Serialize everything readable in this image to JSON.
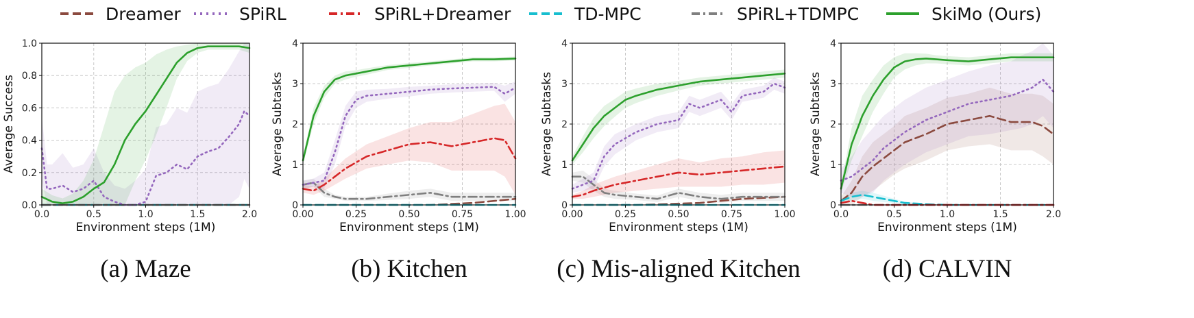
{
  "legend": [
    {
      "name": "Dreamer",
      "color": "#8B4A3F",
      "dash": "dash"
    },
    {
      "name": "SPiRL",
      "color": "#9467BD",
      "dash": "dot"
    },
    {
      "name": "SPiRL+Dreamer",
      "color": "#D62728",
      "dash": "dashdot"
    },
    {
      "name": "TD-MPC",
      "color": "#17BECF",
      "dash": "dash"
    },
    {
      "name": "SPiRL+TDMPC",
      "color": "#7F7F7F",
      "dash": "dashdot"
    },
    {
      "name": "SkiMo (Ours)",
      "color": "#2CA02C",
      "dash": "solid"
    }
  ],
  "chart_data": [
    {
      "type": "line",
      "caption": "(a) Maze",
      "xlabel": "Environment steps (1M)",
      "ylabel": "Average Success",
      "xlim": [
        0,
        2.0
      ],
      "ylim": [
        0,
        1.0
      ],
      "xticks": [
        0.0,
        0.5,
        1.0,
        1.5,
        2.0
      ],
      "yticks": [
        0.0,
        0.2,
        0.4,
        0.6,
        0.8,
        1.0
      ],
      "xtick_labels": [
        "0.0",
        "0.5",
        "1.0",
        "1.5",
        "2.0"
      ],
      "ytick_labels": [
        "0.0",
        "0.2",
        "0.4",
        "0.6",
        "0.8",
        "1.0"
      ],
      "grid": true,
      "series": [
        {
          "name": "SkiMo (Ours)",
          "x": [
            0.0,
            0.1,
            0.2,
            0.3,
            0.4,
            0.5,
            0.6,
            0.7,
            0.8,
            0.9,
            1.0,
            1.1,
            1.2,
            1.3,
            1.4,
            1.5,
            1.6,
            1.7,
            1.8,
            1.9,
            2.0
          ],
          "y": [
            0.05,
            0.02,
            0.01,
            0.02,
            0.05,
            0.1,
            0.14,
            0.25,
            0.4,
            0.5,
            0.58,
            0.68,
            0.78,
            0.88,
            0.94,
            0.97,
            0.98,
            0.98,
            0.98,
            0.98,
            0.97
          ],
          "band": [
            0.05,
            0.04,
            0.03,
            0.05,
            0.1,
            0.18,
            0.35,
            0.45,
            0.4,
            0.35,
            0.3,
            0.25,
            0.18,
            0.1,
            0.05,
            0.03,
            0.02,
            0.02,
            0.02,
            0.02,
            0.03
          ]
        },
        {
          "name": "SPiRL",
          "x": [
            0.0,
            0.05,
            0.1,
            0.2,
            0.3,
            0.4,
            0.5,
            0.6,
            0.7,
            0.8,
            0.9,
            1.0,
            1.1,
            1.2,
            1.3,
            1.4,
            1.5,
            1.6,
            1.7,
            1.8,
            1.9,
            1.95,
            2.0
          ],
          "y": [
            0.35,
            0.1,
            0.1,
            0.12,
            0.08,
            0.1,
            0.15,
            0.05,
            0.02,
            0.0,
            0.0,
            0.02,
            0.18,
            0.2,
            0.25,
            0.22,
            0.3,
            0.33,
            0.35,
            0.42,
            0.5,
            0.58,
            0.55
          ],
          "band": [
            0.2,
            0.15,
            0.15,
            0.2,
            0.15,
            0.15,
            0.2,
            0.15,
            0.1,
            0.1,
            0.15,
            0.2,
            0.3,
            0.3,
            0.35,
            0.35,
            0.4,
            0.4,
            0.4,
            0.42,
            0.45,
            0.42,
            0.45
          ]
        },
        {
          "name": "Dreamer",
          "x": [
            0.0,
            2.0
          ],
          "y": [
            0.0,
            0.0
          ]
        },
        {
          "name": "TD-MPC",
          "x": [
            0.0,
            2.0
          ],
          "y": [
            0.0,
            0.0
          ]
        },
        {
          "name": "SPiRL+TDMPC",
          "x": [
            0.0,
            2.0
          ],
          "y": [
            0.0,
            0.0
          ]
        }
      ]
    },
    {
      "type": "line",
      "caption": "(b) Kitchen",
      "xlabel": "Environment steps (1M)",
      "ylabel": "Average Subtasks",
      "xlim": [
        0,
        1.0
      ],
      "ylim": [
        0,
        4
      ],
      "xticks": [
        0.0,
        0.25,
        0.5,
        0.75,
        1.0
      ],
      "yticks": [
        0,
        1,
        2,
        3,
        4
      ],
      "xtick_labels": [
        "0.00",
        "0.25",
        "0.50",
        "0.75",
        "1.00"
      ],
      "ytick_labels": [
        "0",
        "1",
        "2",
        "3",
        "4"
      ],
      "grid": true,
      "series": [
        {
          "name": "SkiMo (Ours)",
          "x": [
            0.0,
            0.05,
            0.1,
            0.15,
            0.2,
            0.25,
            0.3,
            0.4,
            0.5,
            0.6,
            0.7,
            0.8,
            0.9,
            1.0
          ],
          "y": [
            1.1,
            2.2,
            2.8,
            3.1,
            3.2,
            3.25,
            3.3,
            3.4,
            3.45,
            3.5,
            3.55,
            3.6,
            3.6,
            3.62
          ],
          "band": [
            0.1,
            0.2,
            0.15,
            0.1,
            0.1,
            0.08,
            0.08,
            0.06,
            0.06,
            0.05,
            0.05,
            0.05,
            0.05,
            0.05
          ]
        },
        {
          "name": "SPiRL",
          "x": [
            0.0,
            0.05,
            0.1,
            0.15,
            0.2,
            0.25,
            0.3,
            0.4,
            0.5,
            0.6,
            0.7,
            0.8,
            0.9,
            0.95,
            1.0
          ],
          "y": [
            0.5,
            0.55,
            0.6,
            1.3,
            2.2,
            2.6,
            2.7,
            2.75,
            2.8,
            2.85,
            2.88,
            2.9,
            2.92,
            2.75,
            2.9
          ],
          "band": [
            0.1,
            0.1,
            0.2,
            0.3,
            0.25,
            0.2,
            0.15,
            0.12,
            0.12,
            0.1,
            0.1,
            0.1,
            0.1,
            0.2,
            0.15
          ]
        },
        {
          "name": "SPiRL+Dreamer",
          "x": [
            0.0,
            0.05,
            0.1,
            0.15,
            0.2,
            0.3,
            0.4,
            0.5,
            0.6,
            0.7,
            0.8,
            0.9,
            0.95,
            1.0
          ],
          "y": [
            0.4,
            0.35,
            0.5,
            0.7,
            0.9,
            1.2,
            1.35,
            1.5,
            1.55,
            1.45,
            1.55,
            1.65,
            1.6,
            1.15
          ],
          "band": [
            0.1,
            0.1,
            0.15,
            0.2,
            0.25,
            0.3,
            0.35,
            0.4,
            0.5,
            0.6,
            0.7,
            0.8,
            0.9,
            0.9
          ]
        },
        {
          "name": "SPiRL+TDMPC",
          "x": [
            0.0,
            0.05,
            0.1,
            0.15,
            0.2,
            0.3,
            0.4,
            0.5,
            0.6,
            0.7,
            0.8,
            0.9,
            1.0
          ],
          "y": [
            0.5,
            0.55,
            0.3,
            0.2,
            0.15,
            0.15,
            0.2,
            0.25,
            0.3,
            0.2,
            0.2,
            0.2,
            0.2
          ],
          "band": [
            0.1,
            0.1,
            0.1,
            0.05,
            0.05,
            0.05,
            0.08,
            0.1,
            0.1,
            0.1,
            0.1,
            0.1,
            0.1
          ]
        },
        {
          "name": "Dreamer",
          "x": [
            0.0,
            0.6,
            0.8,
            1.0
          ],
          "y": [
            0.0,
            0.0,
            0.05,
            0.15
          ]
        },
        {
          "name": "TD-MPC",
          "x": [
            0.0,
            1.0
          ],
          "y": [
            0.0,
            0.0
          ]
        }
      ]
    },
    {
      "type": "line",
      "caption": "(c) Mis-aligned Kitchen",
      "xlabel": "Environment steps (1M)",
      "ylabel": "Average Subtasks",
      "xlim": [
        0,
        1.0
      ],
      "ylim": [
        0,
        4
      ],
      "xticks": [
        0.0,
        0.25,
        0.5,
        0.75,
        1.0
      ],
      "yticks": [
        0,
        1,
        2,
        3,
        4
      ],
      "xtick_labels": [
        "0.00",
        "0.25",
        "0.50",
        "0.75",
        "1.00"
      ],
      "ytick_labels": [
        "0",
        "1",
        "2",
        "3",
        "4"
      ],
      "grid": true,
      "series": [
        {
          "name": "SkiMo (Ours)",
          "x": [
            0.0,
            0.05,
            0.1,
            0.15,
            0.2,
            0.25,
            0.3,
            0.4,
            0.5,
            0.6,
            0.7,
            0.8,
            0.9,
            1.0
          ],
          "y": [
            1.1,
            1.5,
            1.9,
            2.2,
            2.4,
            2.6,
            2.7,
            2.85,
            2.95,
            3.05,
            3.1,
            3.15,
            3.2,
            3.25
          ],
          "band": [
            0.1,
            0.2,
            0.25,
            0.25,
            0.22,
            0.2,
            0.18,
            0.15,
            0.12,
            0.1,
            0.1,
            0.1,
            0.1,
            0.1
          ]
        },
        {
          "name": "SPiRL",
          "x": [
            0.0,
            0.05,
            0.1,
            0.15,
            0.2,
            0.3,
            0.4,
            0.5,
            0.55,
            0.6,
            0.7,
            0.75,
            0.8,
            0.9,
            0.95,
            1.0
          ],
          "y": [
            0.4,
            0.5,
            0.6,
            1.2,
            1.5,
            1.8,
            2.0,
            2.1,
            2.5,
            2.4,
            2.6,
            2.3,
            2.7,
            2.8,
            3.0,
            2.9
          ],
          "band": [
            0.1,
            0.15,
            0.2,
            0.25,
            0.25,
            0.2,
            0.2,
            0.2,
            0.2,
            0.2,
            0.2,
            0.2,
            0.15,
            0.15,
            0.15,
            0.15
          ]
        },
        {
          "name": "SPiRL+Dreamer",
          "x": [
            0.0,
            0.05,
            0.1,
            0.2,
            0.3,
            0.4,
            0.5,
            0.6,
            0.7,
            0.8,
            0.9,
            1.0
          ],
          "y": [
            0.2,
            0.25,
            0.35,
            0.5,
            0.6,
            0.7,
            0.8,
            0.75,
            0.8,
            0.85,
            0.9,
            0.95
          ],
          "band": [
            0.05,
            0.1,
            0.15,
            0.2,
            0.25,
            0.3,
            0.35,
            0.3,
            0.35,
            0.35,
            0.4,
            0.4
          ]
        },
        {
          "name": "SPiRL+TDMPC",
          "x": [
            0.0,
            0.05,
            0.1,
            0.15,
            0.2,
            0.3,
            0.4,
            0.5,
            0.6,
            0.7,
            0.8,
            0.9,
            1.0
          ],
          "y": [
            0.7,
            0.7,
            0.5,
            0.3,
            0.25,
            0.2,
            0.15,
            0.3,
            0.2,
            0.15,
            0.2,
            0.2,
            0.2
          ],
          "band": [
            0.1,
            0.15,
            0.15,
            0.1,
            0.1,
            0.08,
            0.08,
            0.1,
            0.1,
            0.1,
            0.1,
            0.1,
            0.1
          ]
        },
        {
          "name": "Dreamer",
          "x": [
            0.0,
            0.3,
            0.5,
            0.6,
            0.7,
            0.8,
            1.0
          ],
          "y": [
            0.0,
            0.0,
            0.03,
            0.05,
            0.1,
            0.15,
            0.2
          ]
        },
        {
          "name": "TD-MPC",
          "x": [
            0.0,
            1.0
          ],
          "y": [
            0.0,
            0.0
          ]
        }
      ]
    },
    {
      "type": "line",
      "caption": "(d) CALVIN",
      "xlabel": "Environment steps (1M)",
      "ylabel": "Average Subtasks",
      "xlim": [
        0,
        2.0
      ],
      "ylim": [
        0,
        4
      ],
      "xticks": [
        0.0,
        0.5,
        1.0,
        1.5,
        2.0
      ],
      "yticks": [
        0,
        1,
        2,
        3,
        4
      ],
      "xtick_labels": [
        "0.0",
        "0.5",
        "1.0",
        "1.5",
        "2.0"
      ],
      "ytick_labels": [
        "0",
        "1",
        "2",
        "3",
        "4"
      ],
      "grid": true,
      "series": [
        {
          "name": "SkiMo (Ours)",
          "x": [
            0.0,
            0.1,
            0.2,
            0.3,
            0.4,
            0.5,
            0.6,
            0.7,
            0.8,
            0.9,
            1.0,
            1.2,
            1.4,
            1.6,
            1.8,
            2.0
          ],
          "y": [
            0.4,
            1.5,
            2.2,
            2.7,
            3.1,
            3.4,
            3.55,
            3.6,
            3.62,
            3.6,
            3.58,
            3.55,
            3.6,
            3.65,
            3.65,
            3.65
          ],
          "band": [
            0.1,
            0.4,
            0.5,
            0.4,
            0.35,
            0.25,
            0.2,
            0.15,
            0.12,
            0.1,
            0.1,
            0.1,
            0.1,
            0.1,
            0.1,
            0.1
          ]
        },
        {
          "name": "SPiRL",
          "x": [
            0.0,
            0.1,
            0.2,
            0.3,
            0.4,
            0.5,
            0.6,
            0.8,
            1.0,
            1.2,
            1.4,
            1.6,
            1.7,
            1.8,
            1.9,
            2.0
          ],
          "y": [
            0.6,
            0.7,
            0.9,
            1.1,
            1.4,
            1.6,
            1.8,
            2.1,
            2.3,
            2.5,
            2.6,
            2.7,
            2.8,
            2.9,
            3.1,
            2.8
          ],
          "band": [
            0.3,
            0.5,
            0.7,
            0.8,
            0.8,
            0.8,
            0.8,
            0.8,
            0.8,
            0.8,
            0.85,
            0.85,
            0.9,
            0.9,
            0.9,
            0.9
          ]
        },
        {
          "name": "Dreamer",
          "x": [
            0.0,
            0.1,
            0.2,
            0.3,
            0.4,
            0.5,
            0.6,
            0.8,
            1.0,
            1.2,
            1.4,
            1.6,
            1.8,
            1.9,
            2.0
          ],
          "y": [
            0.1,
            0.3,
            0.7,
            0.95,
            1.15,
            1.35,
            1.55,
            1.75,
            2.0,
            2.1,
            2.2,
            2.05,
            2.05,
            1.95,
            1.75
          ],
          "band": [
            0.1,
            0.3,
            0.5,
            0.6,
            0.6,
            0.6,
            0.65,
            0.65,
            0.65,
            0.65,
            0.7,
            0.7,
            0.7,
            0.75,
            0.75
          ]
        },
        {
          "name": "TD-MPC",
          "x": [
            0.0,
            0.1,
            0.2,
            0.3,
            0.4,
            0.5,
            0.6,
            0.8,
            1.0,
            1.5,
            2.0
          ],
          "y": [
            0.1,
            0.2,
            0.25,
            0.2,
            0.15,
            0.1,
            0.05,
            0.02,
            0.0,
            0.0,
            0.0
          ],
          "band": [
            0.05,
            0.1,
            0.1,
            0.1,
            0.08,
            0.05,
            0.03,
            0.01,
            0.0,
            0.0,
            0.0
          ]
        },
        {
          "name": "SPiRL+Dreamer",
          "x": [
            0.0,
            0.1,
            0.3,
            2.0
          ],
          "y": [
            0.05,
            0.1,
            0.0,
            0.0
          ]
        },
        {
          "name": "SPiRL+TDMPC",
          "x": [
            0.0,
            2.0
          ],
          "y": [
            0.0,
            0.0
          ]
        }
      ]
    }
  ]
}
